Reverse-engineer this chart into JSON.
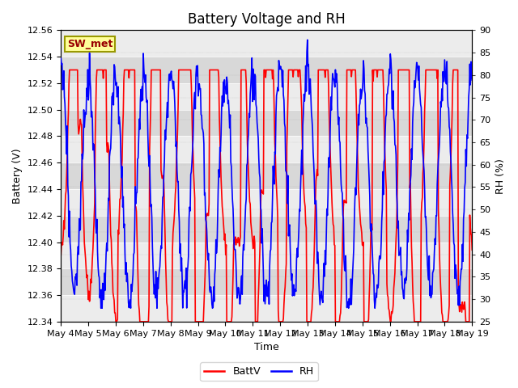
{
  "title": "Battery Voltage and RH",
  "xlabel": "Time",
  "ylabel_left": "Battery (V)",
  "ylabel_right": "RH (%)",
  "ylim_left": [
    12.34,
    12.56
  ],
  "ylim_right": [
    25,
    90
  ],
  "yticks_left": [
    12.34,
    12.36,
    12.38,
    12.4,
    12.42,
    12.44,
    12.46,
    12.48,
    12.5,
    12.52,
    12.54,
    12.56
  ],
  "yticks_right": [
    25,
    30,
    35,
    40,
    45,
    50,
    55,
    60,
    65,
    70,
    75,
    80,
    85,
    90
  ],
  "xtick_labels": [
    "May 4",
    "May 5",
    "May 6",
    "May 7",
    "May 8",
    "May 9",
    "May 10",
    "May 11",
    "May 12",
    "May 13",
    "May 14",
    "May 15",
    "May 16",
    "May 17",
    "May 18",
    "May 19"
  ],
  "station_label": "SW_met",
  "battv_color": "#FF0000",
  "rh_color": "#0000FF",
  "battv_linewidth": 1.2,
  "rh_linewidth": 1.2,
  "legend_labels": [
    "BattV",
    "RH"
  ],
  "background_color": "#FFFFFF",
  "plot_bg_color": "#E0E0E0",
  "band_color_light": "#ECECEC",
  "band_color_dark": "#D8D8D8",
  "title_fontsize": 12,
  "axis_label_fontsize": 9,
  "tick_fontsize": 8,
  "legend_fontsize": 9,
  "station_box_color": "#FFFF99",
  "station_box_edgecolor": "#999900",
  "station_text_color": "#990000"
}
